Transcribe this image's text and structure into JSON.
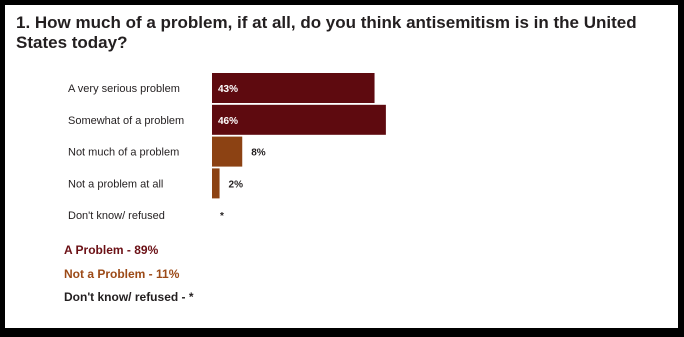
{
  "title": "1. How much of a problem, if at all, do you think antisemitism is in the United States today?",
  "chart_data": {
    "type": "bar",
    "orientation": "horizontal",
    "categories": [
      "A very serious problem",
      "Somewhat of a problem",
      "Not much of a problem",
      "Not a problem at all",
      "Don't know/ refused"
    ],
    "values": [
      43,
      46,
      8,
      2,
      null
    ],
    "labels": [
      "43%",
      "46%",
      "8%",
      "2%",
      "*"
    ],
    "colors": [
      "#5e0a0f",
      "#5e0a0f",
      "#8c4213",
      "#8c4213",
      "#8c4213"
    ],
    "label_inside": [
      true,
      true,
      false,
      false,
      false
    ],
    "grid": false
  },
  "summary": [
    {
      "text": "A Problem - 89%",
      "color": "#6b1015"
    },
    {
      "text": "Not a Problem - 11%",
      "color": "#9c4a17"
    },
    {
      "text": "Don't know/ refused - *",
      "color": "#231f20"
    }
  ]
}
